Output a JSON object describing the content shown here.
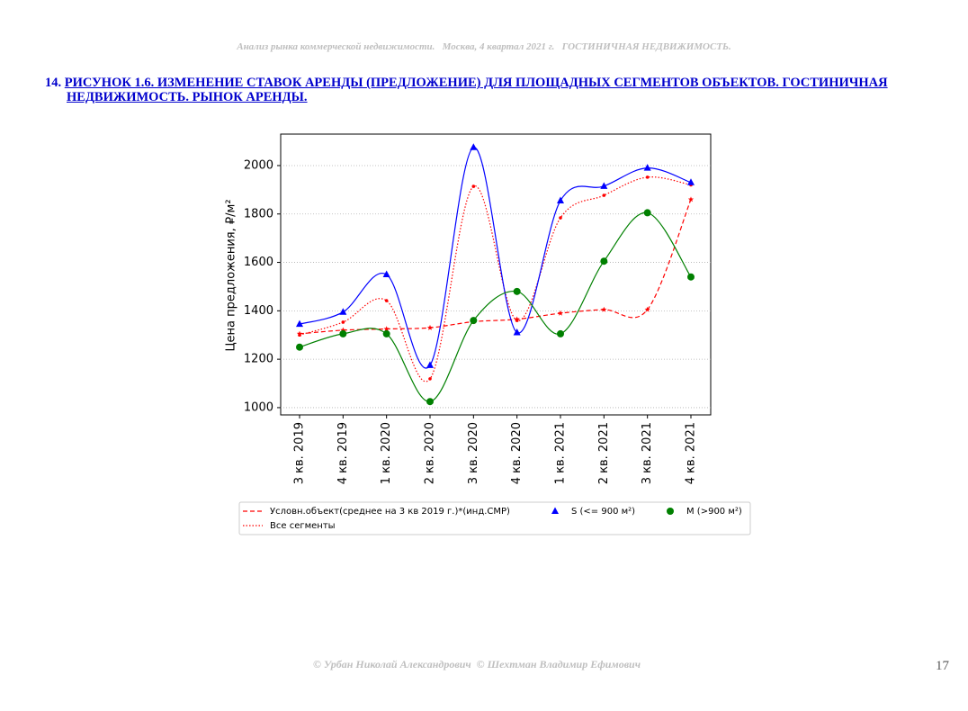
{
  "header": "Анализ рынка коммерческой недвижимости.   Москва, 4 квартал 2021 г.   ГОСТИНИЧНАЯ НЕДВИЖИМОСТЬ.",
  "caption": {
    "number": "14.",
    "text": "РИСУНОК 1.6. ИЗМЕНЕНИЕ СТАВОК АРЕНДЫ (ПРЕДЛОЖЕНИЕ) ДЛЯ ПЛОЩАДНЫХ СЕГМЕНТОВ ОБЪЕКТОВ. ГОСТИНИЧНАЯ НЕДВИЖИМОСТЬ. РЫНОК АРЕНДЫ."
  },
  "chart_data": {
    "type": "line",
    "y_label": "Цена предложения, ₽/м²",
    "categories": [
      "3 кв. 2019",
      "4 кв. 2019",
      "1 кв. 2020",
      "2 кв. 2020",
      "3 кв. 2020",
      "4 кв. 2020",
      "1 кв. 2021",
      "2 кв. 2021",
      "3 кв. 2021",
      "4 кв. 2021"
    ],
    "ylim": [
      970,
      2130
    ],
    "yticks": [
      1000,
      1200,
      1400,
      1600,
      1800,
      2000
    ],
    "grid": true,
    "series": [
      {
        "name": "Условн.объект(среднее на 3 кв 2019 г.)*(инд.СМР)",
        "color": "#ff0000",
        "line": "dashed",
        "marker": "star",
        "values": [
          1305,
          1320,
          1325,
          1330,
          1355,
          1365,
          1390,
          1405,
          1405,
          1860
        ]
      },
      {
        "name": "Все сегменты",
        "color": "#ff0000",
        "line": "dotted",
        "marker": "dot",
        "values": [
          1300,
          1353,
          1442,
          1119,
          1914,
          1360,
          1784,
          1877,
          1952,
          1920
        ]
      },
      {
        "name": "S (<= 900 м²)",
        "color": "#0000ff",
        "line": "solid",
        "marker": "triangle",
        "values": [
          1345,
          1395,
          1550,
          1175,
          2075,
          1310,
          1855,
          1915,
          1990,
          1930
        ]
      },
      {
        "name": "M (>900 м²)",
        "color": "#008000",
        "line": "solid",
        "marker": "circle",
        "values": [
          1250,
          1305,
          1305,
          1025,
          1360,
          1480,
          1305,
          1605,
          1805,
          1540
        ]
      }
    ]
  },
  "footer": "© Урбан Николай Александрович  © Шехтман Владимир Ефимович",
  "page_number": "17"
}
